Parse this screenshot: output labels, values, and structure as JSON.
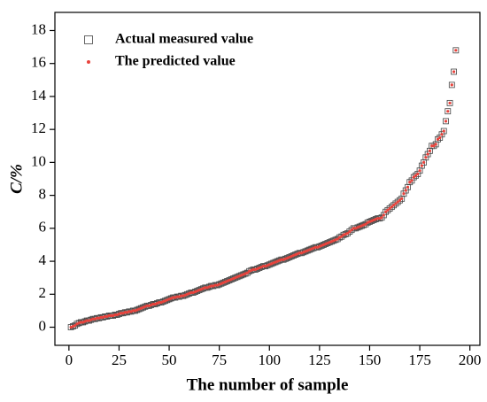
{
  "chart_data": {
    "type": "scatter",
    "xlabel": "The number of sample",
    "ylabel": "C/%",
    "xlim": [
      -7,
      205
    ],
    "ylim": [
      -1.1,
      19.1
    ],
    "xticks": [
      0,
      25,
      50,
      75,
      100,
      125,
      150,
      175,
      200
    ],
    "yticks": [
      0,
      2,
      4,
      6,
      8,
      10,
      12,
      14,
      16,
      18
    ],
    "legend": "upper left",
    "x": [
      1,
      2,
      3,
      4,
      5,
      6,
      7,
      8,
      9,
      10,
      11,
      12,
      13,
      14,
      15,
      16,
      17,
      18,
      19,
      20,
      21,
      22,
      23,
      24,
      25,
      26,
      27,
      28,
      29,
      30,
      31,
      32,
      33,
      34,
      35,
      36,
      37,
      38,
      39,
      40,
      41,
      42,
      43,
      44,
      45,
      46,
      47,
      48,
      49,
      50,
      51,
      52,
      53,
      54,
      55,
      56,
      57,
      58,
      59,
      60,
      61,
      62,
      63,
      64,
      65,
      66,
      67,
      68,
      69,
      70,
      71,
      72,
      73,
      74,
      75,
      76,
      77,
      78,
      79,
      80,
      81,
      82,
      83,
      84,
      85,
      86,
      87,
      88,
      89,
      90,
      91,
      92,
      93,
      94,
      95,
      96,
      97,
      98,
      99,
      100,
      101,
      102,
      103,
      104,
      105,
      106,
      107,
      108,
      109,
      110,
      111,
      112,
      113,
      114,
      115,
      116,
      117,
      118,
      119,
      120,
      121,
      122,
      123,
      124,
      125,
      126,
      127,
      128,
      129,
      130,
      131,
      132,
      133,
      134,
      135,
      136,
      137,
      138,
      139,
      140,
      141,
      142,
      143,
      144,
      145,
      146,
      147,
      148,
      149,
      150,
      151,
      152,
      153,
      154,
      155,
      156,
      157,
      158,
      159,
      160,
      161,
      162,
      163,
      164,
      165,
      166,
      167,
      168,
      169,
      170,
      171,
      172,
      173,
      174,
      175,
      176,
      177,
      178,
      179,
      180,
      181,
      182,
      183,
      184,
      185,
      186,
      187,
      188,
      189,
      190,
      191,
      192,
      193
    ],
    "series": [
      {
        "name": "Actual measured value",
        "color": "#444444",
        "marker": "square",
        "values": [
          0.0,
          0.05,
          0.1,
          0.2,
          0.25,
          0.3,
          0.3,
          0.35,
          0.4,
          0.4,
          0.45,
          0.5,
          0.5,
          0.55,
          0.55,
          0.6,
          0.6,
          0.65,
          0.65,
          0.7,
          0.7,
          0.7,
          0.75,
          0.75,
          0.8,
          0.85,
          0.85,
          0.9,
          0.9,
          0.95,
          0.95,
          1.0,
          1.0,
          1.05,
          1.1,
          1.15,
          1.2,
          1.25,
          1.3,
          1.3,
          1.35,
          1.4,
          1.4,
          1.45,
          1.5,
          1.5,
          1.55,
          1.6,
          1.65,
          1.7,
          1.75,
          1.8,
          1.8,
          1.85,
          1.85,
          1.9,
          1.9,
          1.95,
          2.0,
          2.05,
          2.1,
          2.1,
          2.15,
          2.2,
          2.25,
          2.3,
          2.35,
          2.4,
          2.4,
          2.45,
          2.5,
          2.5,
          2.55,
          2.55,
          2.6,
          2.65,
          2.7,
          2.75,
          2.8,
          2.85,
          2.9,
          2.95,
          3.0,
          3.05,
          3.1,
          3.15,
          3.2,
          3.25,
          3.3,
          3.4,
          3.45,
          3.5,
          3.5,
          3.55,
          3.6,
          3.65,
          3.7,
          3.7,
          3.75,
          3.8,
          3.85,
          3.9,
          3.95,
          4.0,
          4.05,
          4.1,
          4.1,
          4.15,
          4.2,
          4.25,
          4.3,
          4.35,
          4.4,
          4.45,
          4.5,
          4.5,
          4.55,
          4.6,
          4.65,
          4.7,
          4.75,
          4.8,
          4.85,
          4.85,
          4.9,
          4.95,
          5.0,
          5.05,
          5.1,
          5.15,
          5.2,
          5.25,
          5.3,
          5.35,
          5.45,
          5.5,
          5.6,
          5.65,
          5.7,
          5.8,
          5.9,
          6.0,
          6.0,
          6.05,
          6.1,
          6.15,
          6.2,
          6.25,
          6.35,
          6.4,
          6.45,
          6.5,
          6.55,
          6.6,
          6.6,
          6.65,
          6.8,
          7.0,
          7.1,
          7.2,
          7.3,
          7.4,
          7.5,
          7.6,
          7.7,
          7.8,
          8.1,
          8.3,
          8.5,
          8.8,
          8.9,
          9.1,
          9.2,
          9.3,
          9.5,
          9.8,
          10.0,
          10.3,
          10.5,
          10.7,
          11.0,
          11.0,
          11.1,
          11.4,
          11.5,
          11.7,
          11.9,
          12.5,
          13.1,
          13.6,
          14.7,
          15.5,
          16.8
        ]
      },
      {
        "name": "The predicted value",
        "color": "#e8433c",
        "marker": "circle",
        "values": [
          0.0,
          0.05,
          0.1,
          0.2,
          0.25,
          0.3,
          0.3,
          0.35,
          0.4,
          0.4,
          0.45,
          0.5,
          0.5,
          0.55,
          0.55,
          0.6,
          0.6,
          0.65,
          0.65,
          0.7,
          0.7,
          0.7,
          0.75,
          0.75,
          0.8,
          0.85,
          0.85,
          0.9,
          0.9,
          0.95,
          0.95,
          1.0,
          1.0,
          1.05,
          1.1,
          1.15,
          1.2,
          1.25,
          1.3,
          1.3,
          1.35,
          1.4,
          1.4,
          1.45,
          1.5,
          1.5,
          1.55,
          1.6,
          1.65,
          1.7,
          1.75,
          1.8,
          1.8,
          1.85,
          1.85,
          1.9,
          1.9,
          1.95,
          2.0,
          2.05,
          2.1,
          2.1,
          2.15,
          2.2,
          2.25,
          2.3,
          2.35,
          2.4,
          2.4,
          2.45,
          2.5,
          2.5,
          2.55,
          2.55,
          2.6,
          2.65,
          2.7,
          2.75,
          2.8,
          2.85,
          2.9,
          2.95,
          3.0,
          3.05,
          3.1,
          3.15,
          3.2,
          3.25,
          3.3,
          3.4,
          3.45,
          3.5,
          3.5,
          3.55,
          3.6,
          3.65,
          3.7,
          3.7,
          3.75,
          3.8,
          3.85,
          3.9,
          3.95,
          4.0,
          4.05,
          4.1,
          4.1,
          4.15,
          4.2,
          4.25,
          4.3,
          4.35,
          4.4,
          4.45,
          4.5,
          4.5,
          4.55,
          4.6,
          4.65,
          4.7,
          4.75,
          4.8,
          4.85,
          4.85,
          4.9,
          4.95,
          5.0,
          5.05,
          5.1,
          5.15,
          5.2,
          5.25,
          5.3,
          5.35,
          5.45,
          5.5,
          5.6,
          5.65,
          5.7,
          5.8,
          5.9,
          6.0,
          6.0,
          6.05,
          6.1,
          6.15,
          6.2,
          6.25,
          6.35,
          6.4,
          6.45,
          6.5,
          6.55,
          6.6,
          6.6,
          6.65,
          6.8,
          7.0,
          7.1,
          7.2,
          7.3,
          7.4,
          7.5,
          7.6,
          7.7,
          7.8,
          8.1,
          8.3,
          8.5,
          8.8,
          8.9,
          9.1,
          9.2,
          9.3,
          9.5,
          9.8,
          10.0,
          10.3,
          10.5,
          10.7,
          11.0,
          11.0,
          11.1,
          11.4,
          11.5,
          11.7,
          11.9,
          12.5,
          13.1,
          13.6,
          14.7,
          15.5,
          16.8
        ]
      }
    ]
  }
}
